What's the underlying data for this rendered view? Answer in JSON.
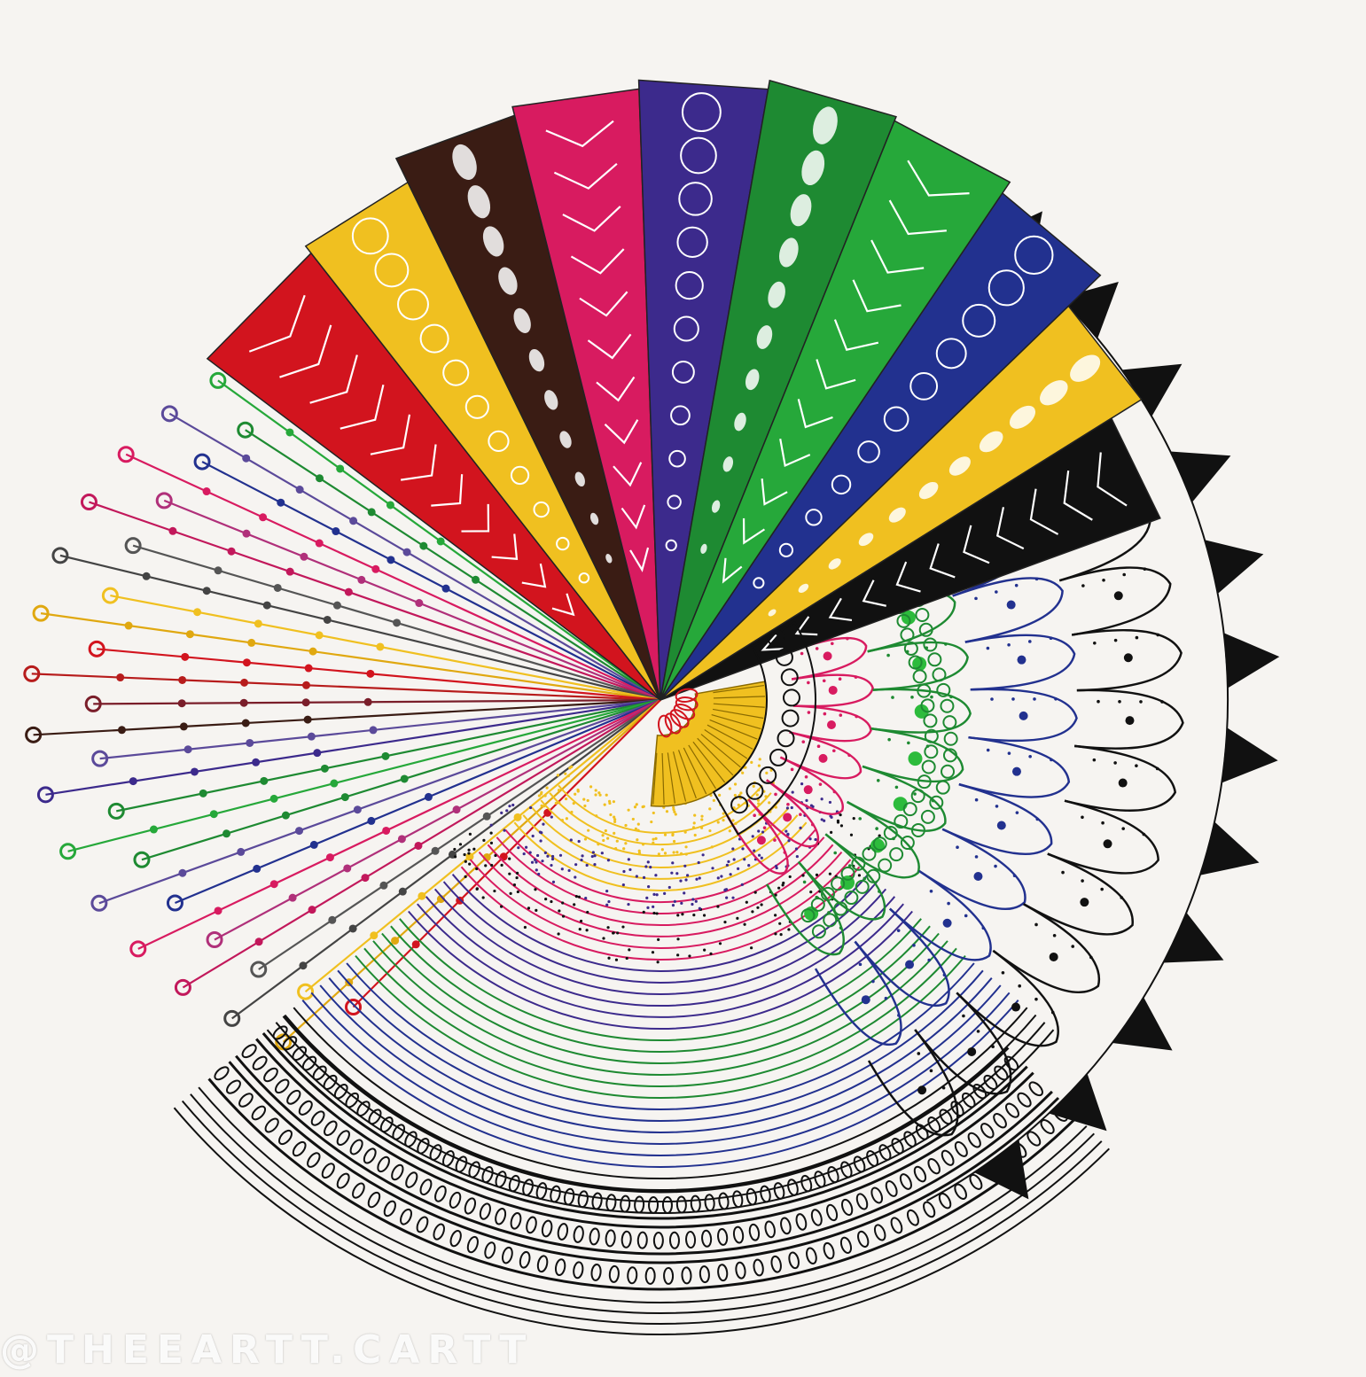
{
  "artwork": {
    "palette": {
      "paper": "#f6f4f1",
      "ink": "#111111",
      "red": "#d2141e",
      "yellow": "#f0c020",
      "brown": "#3a1c14",
      "pink": "#d81b60",
      "purple": "#3c2a8c",
      "green": "#1e8a32",
      "blue": "#22318f"
    },
    "fan_band_colors": [
      "#d2141e",
      "#f0c020",
      "#3a1c14",
      "#d81b60",
      "#3c2a8c",
      "#1e8a32",
      "#26a83a",
      "#22318f",
      "#f0c020",
      "#111111"
    ],
    "pin_ray_colors": [
      "#3a1c14",
      "#5b4a9a",
      "#3c2a8c",
      "#1e8a32",
      "#26a83a",
      "#1e8a32",
      "#5b4a9a",
      "#22318f",
      "#d81b60",
      "#b0307a",
      "#c2185b",
      "#555555",
      "#444444",
      "#f0c020",
      "#e0a810",
      "#d2141e",
      "#b71c1c",
      "#7a1e2a"
    ],
    "arc_colors": [
      "#f0c020",
      "#d81b60",
      "#3c2a8c",
      "#1e8a32",
      "#22318f",
      "#111111"
    ],
    "watermark": "@THEEARTT.CARTT"
  }
}
